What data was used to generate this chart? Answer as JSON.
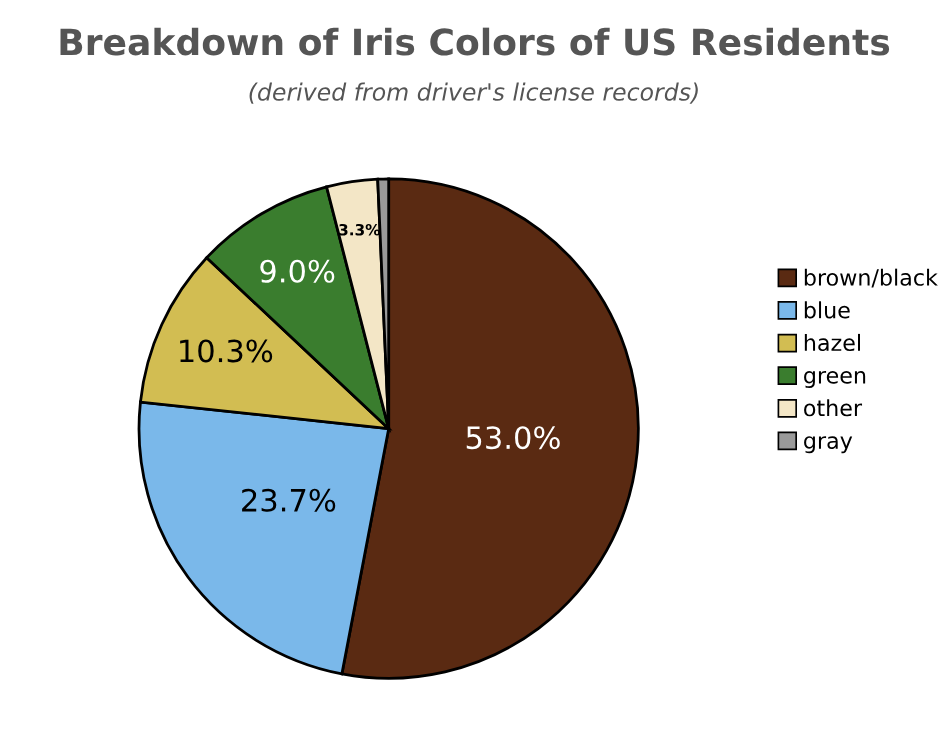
{
  "chart_data": {
    "type": "pie",
    "title": "Breakdown of Iris Colors of US Residents",
    "subtitle": "(derived from driver's license records)",
    "categories": [
      "brown/black",
      "blue",
      "hazel",
      "green",
      "other",
      "gray"
    ],
    "values": [
      53.0,
      23.7,
      10.3,
      9.0,
      3.3,
      0.7
    ],
    "value_labels": [
      "53.0%",
      "23.7%",
      "10.3%",
      "9.0%",
      "3.3%",
      null
    ],
    "colors": [
      "#5a2a12",
      "#7ab8ea",
      "#d2bd52",
      "#3a7d2e",
      "#f3e6c6",
      "#9a9a9a"
    ],
    "legend": "right"
  }
}
